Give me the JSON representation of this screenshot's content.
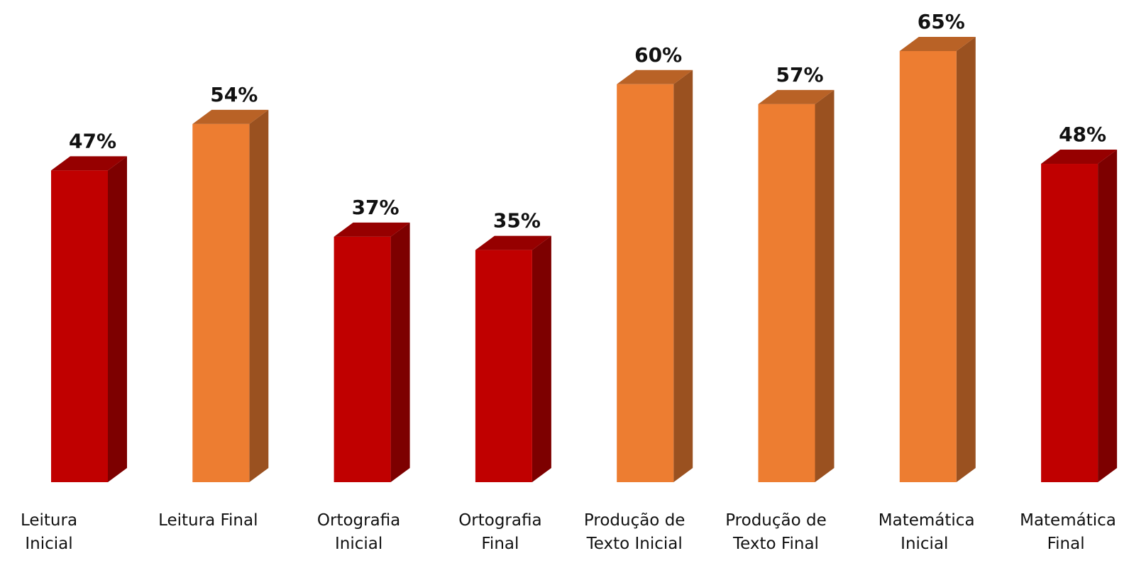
{
  "chart_data": {
    "type": "bar3d",
    "categories": [
      "Leitura Inicial",
      "Leitura Final",
      "Ortografia Inicial",
      "Ortografia Final",
      "Produção de Texto Inicial",
      "Produção de Texto Final",
      "Matemática Inicial",
      "Matemática Final"
    ],
    "values": [
      47,
      54,
      37,
      35,
      60,
      57,
      65,
      48
    ],
    "value_labels": [
      "47%",
      "54%",
      "37%",
      "35%",
      "60%",
      "57%",
      "65%",
      "48%"
    ],
    "colors": [
      "#c00000",
      "#ed7d31",
      "#c00000",
      "#c00000",
      "#ed7d31",
      "#ed7d31",
      "#ed7d31",
      "#c00000"
    ]
  }
}
